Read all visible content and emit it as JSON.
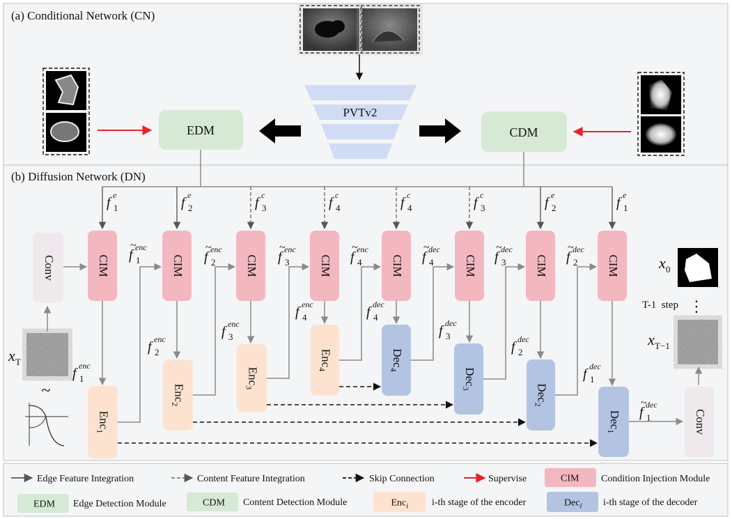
{
  "colors": {
    "cim": "#f3b7c0",
    "edm": "#d6e9d5",
    "enc": "#fde3cf",
    "dec": "#b3c4e3",
    "conv": "#efe8ec",
    "pvt": "#cfdcf3",
    "panel": "#f4f5f6",
    "panel_border": "#c8cacc",
    "gray_arrow": "#8a8a8a",
    "supervise": "#e8222a"
  },
  "panel_a": {
    "title": "(a) Conditional Network (CN)",
    "backbone": "PVTv2",
    "edm_label": "EDM",
    "cdm_label": "CDM"
  },
  "panel_b": {
    "title": "(b) Diffusion Network (DN)",
    "conv_label": "Conv",
    "cim_label": "CIM",
    "enc_label": "Enc",
    "dec_label": "Dec",
    "cond_labels": [
      {
        "base": "f",
        "sub": "1",
        "sup": "e"
      },
      {
        "base": "f",
        "sub": "2",
        "sup": "e"
      },
      {
        "base": "f",
        "sub": "3",
        "sup": "c"
      },
      {
        "base": "f",
        "sub": "4",
        "sup": "c"
      },
      {
        "base": "f",
        "sub": "4",
        "sup": "c"
      },
      {
        "base": "f",
        "sub": "3",
        "sup": "c"
      },
      {
        "base": "f",
        "sub": "2",
        "sup": "e"
      },
      {
        "base": "f",
        "sub": "1",
        "sup": "e"
      }
    ],
    "tilde_labels": [
      {
        "sub": "1",
        "sup": "enc"
      },
      {
        "sub": "2",
        "sup": "enc"
      },
      {
        "sub": "3",
        "sup": "enc"
      },
      {
        "sub": "4",
        "sup": "enc"
      },
      {
        "sub": "4",
        "sup": "dec"
      },
      {
        "sub": "3",
        "sup": "dec"
      },
      {
        "sub": "2",
        "sup": "dec"
      }
    ],
    "stage_labels": [
      {
        "sub": "1",
        "sup": "enc"
      },
      {
        "sub": "2",
        "sup": "enc"
      },
      {
        "sub": "3",
        "sup": "enc"
      },
      {
        "sub": "4",
        "sup": "enc"
      },
      {
        "sub": "4",
        "sup": "dec"
      },
      {
        "sub": "3",
        "sup": "dec"
      },
      {
        "sub": "2",
        "sup": "dec"
      },
      {
        "sub": "1",
        "sup": "dec"
      }
    ],
    "final_label": {
      "sub": "1",
      "sup": "dec"
    },
    "xT": {
      "base": "x",
      "sub": "T"
    },
    "x0": {
      "base": "x",
      "sub": "0"
    },
    "xT1": {
      "base": "x",
      "sub": "T−1"
    },
    "step_text": "T-1  step",
    "tilde_symbol": "~"
  },
  "legend": {
    "edge_feature": "Edge Feature Integration",
    "content_feature": "Content Feature Integration",
    "skip": "Skip Connection",
    "supervise": "Supervise",
    "cim_box": "CIM",
    "cim_desc": "Condition Injection Module",
    "edm_box": "EDM",
    "edm_desc": "Edge Detection Module",
    "cdm_box": "CDM",
    "cdm_desc": "Content Detection Module",
    "enc_box": "Enc",
    "enc_sub": "i",
    "enc_desc": "i-th stage of the encoder",
    "dec_box": "Dec",
    "dec_sub": "i",
    "dec_desc": "i-th stage of the decoder"
  }
}
